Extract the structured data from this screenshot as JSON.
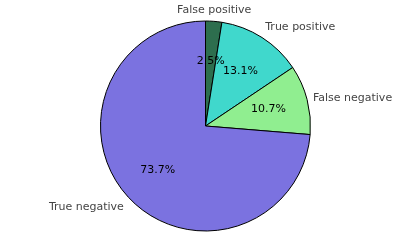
{
  "chart_data": {
    "type": "pie",
    "categories": [
      "False positive",
      "True positive",
      "False negative",
      "True negative"
    ],
    "values": [
      2.5,
      13.1,
      10.7,
      73.7
    ],
    "value_labels": [
      "2.5%",
      "13.1%",
      "10.7%",
      "73.7%"
    ],
    "colors": [
      "#2d6e4e",
      "#40d8cc",
      "#90ee90",
      "#7b72e0"
    ],
    "data_labels": true
  }
}
